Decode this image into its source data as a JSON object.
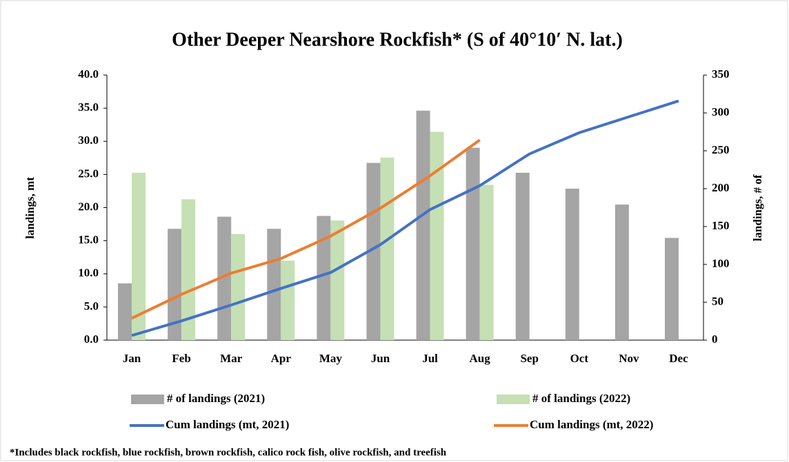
{
  "chart_data": {
    "type": "bar",
    "title": "Other Deeper Nearshore  Rockfish*  (S of 40°10′ N. lat.)",
    "ylabel": "landings,  mt",
    "y2label": "landings, # of",
    "footnote": "*Includes black rockfish, blue rockfish, brown rockfish, calico rock fish, olive rockfish, and treefish",
    "categories": [
      "Jan",
      "Feb",
      "Mar",
      "Apr",
      "May",
      "Jun",
      "Jul",
      "Aug",
      "Sep",
      "Oct",
      "Nov",
      "Dec"
    ],
    "ylim": [
      0,
      40
    ],
    "yticks": [
      {
        "value": 0,
        "label": "0.0"
      },
      {
        "value": 5,
        "label": "5.0"
      },
      {
        "value": 10,
        "label": "10.0"
      },
      {
        "value": 15,
        "label": "15.0"
      },
      {
        "value": 20,
        "label": "20.0"
      },
      {
        "value": 25,
        "label": "25.0"
      },
      {
        "value": 30,
        "label": "30.0"
      },
      {
        "value": 35,
        "label": "35.0"
      },
      {
        "value": 40,
        "label": "40.0"
      }
    ],
    "y2lim": [
      0,
      350
    ],
    "y2ticks": [
      0,
      50,
      100,
      150,
      200,
      250,
      300,
      350
    ],
    "series": [
      {
        "name": "# of landings (2021)",
        "type": "bar",
        "axis": "y2",
        "color": "#a5a5a5",
        "values": [
          75,
          147,
          163,
          147,
          164,
          234,
          303,
          254,
          221,
          200,
          179,
          135
        ]
      },
      {
        "name": "# of landings (2022)",
        "type": "bar",
        "axis": "y2",
        "color": "#c5e0b4",
        "values": [
          221,
          186,
          140,
          105,
          158,
          241,
          275,
          205,
          null,
          null,
          null,
          null
        ]
      },
      {
        "name": "Cum landings (mt, 2021)",
        "type": "line",
        "axis": "y",
        "color": "#4472c4",
        "values": [
          0.7,
          2.9,
          5.3,
          7.8,
          10.2,
          14.4,
          19.7,
          23.3,
          28.1,
          31.3,
          33.7,
          36.1
        ]
      },
      {
        "name": "Cum landings (mt, 2022)",
        "type": "line",
        "axis": "y",
        "color": "#ed7d31",
        "values": [
          3.3,
          6.9,
          10.1,
          12.3,
          15.7,
          19.9,
          24.8,
          30.2,
          null,
          null,
          null,
          null
        ]
      }
    ]
  }
}
